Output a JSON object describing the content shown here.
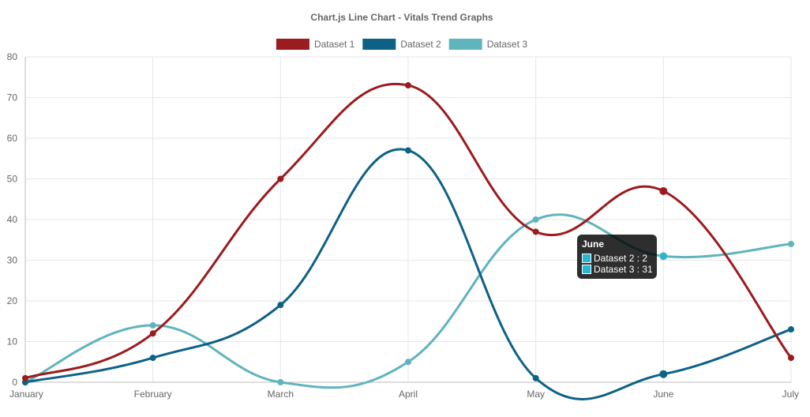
{
  "chart_data": {
    "type": "line",
    "title": "Chart.js Line Chart - Vitals Trend Graphs",
    "categories": [
      "January",
      "February",
      "March",
      "April",
      "May",
      "June",
      "July"
    ],
    "series": [
      {
        "name": "Dataset 1",
        "color": "#9b1b1e",
        "values": [
          1,
          12,
          50,
          73,
          37,
          47,
          6
        ]
      },
      {
        "name": "Dataset 2",
        "color": "#0d6186",
        "values": [
          0,
          6,
          19,
          57,
          1,
          2,
          13
        ]
      },
      {
        "name": "Dataset 3",
        "color": "#5fb4be",
        "values": [
          0,
          14,
          0,
          5,
          40,
          31,
          34
        ]
      }
    ],
    "ylim": [
      0,
      80
    ],
    "yticks": [
      0,
      10,
      20,
      30,
      40,
      50,
      60,
      70,
      80
    ],
    "grid": true,
    "legend_position": "top",
    "tooltip": {
      "title": "June",
      "category_index": 5,
      "items": [
        {
          "label": "Dataset 2 : 2",
          "color": "#25b7d3"
        },
        {
          "label": "Dataset 3 : 31",
          "color": "#25b7d3"
        }
      ]
    }
  }
}
